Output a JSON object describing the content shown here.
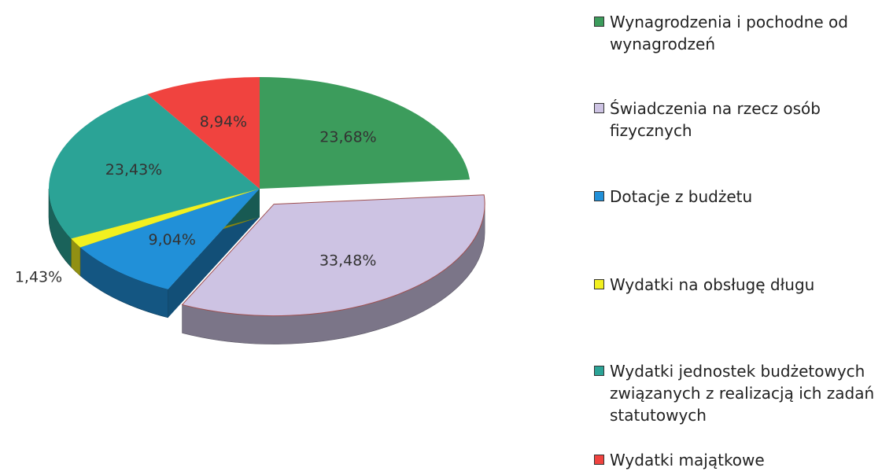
{
  "chart_data": {
    "type": "pie",
    "categories": [
      "Wynagrodzenia i pochodne od wynagrodzeń",
      "Świadczenia na rzecz osób fizycznych",
      "Dotacje z budżetu",
      "Wydatki na obsługę długu",
      "Wydatki jednostek budżetowych związanych z realizacją  ich zadań statutowych",
      "Wydatki majątkowe"
    ],
    "values": [
      23.68,
      33.48,
      9.04,
      1.43,
      23.43,
      8.94
    ],
    "value_labels": [
      "23,68%",
      "33,48%",
      "9,04%",
      "1,43%",
      "23,43%",
      "8,94%"
    ],
    "colors": [
      "#3c9c5c",
      "#cdc3e3",
      "#2190d8",
      "#f2f020",
      "#2ba396",
      "#f0433f"
    ],
    "exploded": [
      1
    ],
    "legend": "right"
  }
}
